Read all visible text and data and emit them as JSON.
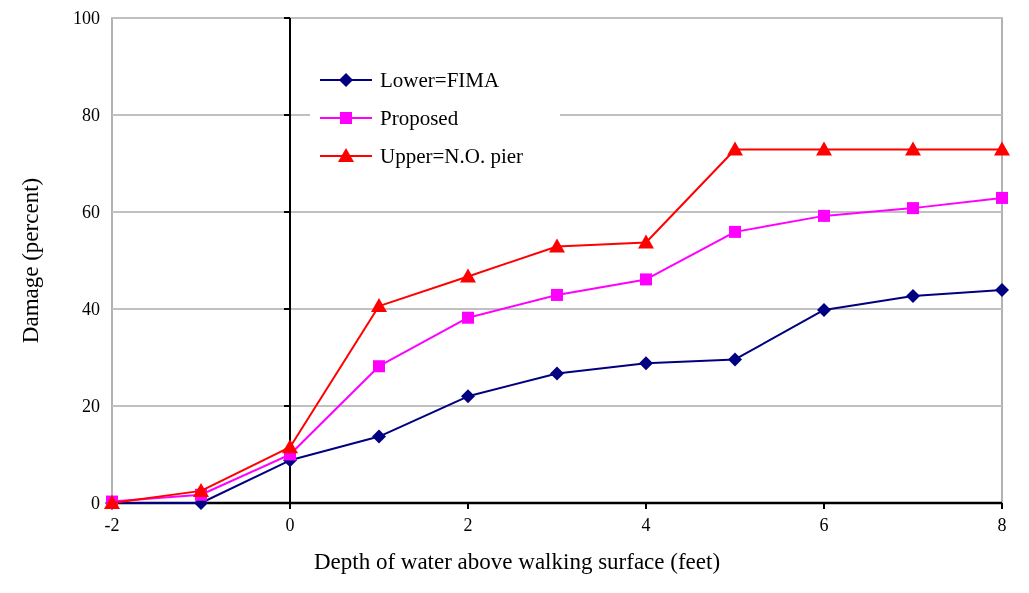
{
  "chart_data": {
    "type": "line",
    "xlabel": "Depth of water above walking surface (feet)",
    "ylabel": "Damage (percent)",
    "x": [
      -2,
      -1,
      0,
      1,
      2,
      3,
      4,
      5,
      6,
      7,
      8
    ],
    "xlim": [
      -2,
      8
    ],
    "xticks": [
      -2,
      0,
      2,
      4,
      6,
      8
    ],
    "ylim": [
      0,
      100
    ],
    "yticks": [
      0,
      20,
      40,
      60,
      80,
      100
    ],
    "grid": "y",
    "legend": "top left",
    "series": [
      {
        "name": "Lower=FIMA",
        "color": "#000080",
        "marker": "diamond",
        "values": [
          0,
          0,
          8.8,
          13.7,
          22,
          26.7,
          28.8,
          29.6,
          39.8,
          42.7,
          43.9
        ]
      },
      {
        "name": "Proposed",
        "color": "#ff00ff",
        "marker": "square",
        "values": [
          0.3,
          1.7,
          10,
          28.2,
          38.2,
          42.9,
          46.1,
          55.9,
          59.2,
          60.8,
          62.9
        ]
      },
      {
        "name": "Upper=N.O. pier",
        "color": "#ff0000",
        "marker": "triangle",
        "values": [
          0,
          2.5,
          11.5,
          40.6,
          46.7,
          52.9,
          53.7,
          72.9,
          72.9,
          72.9,
          72.9
        ]
      }
    ]
  }
}
